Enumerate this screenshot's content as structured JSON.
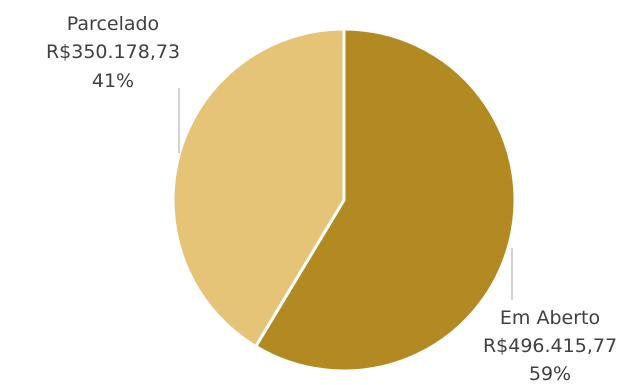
{
  "chart_data": {
    "type": "pie",
    "title": "",
    "slices": [
      {
        "label": "Em Aberto",
        "value": 496415.77,
        "value_text": "R$496.415,77",
        "percent_text": "59%",
        "color": "#B38A22"
      },
      {
        "label": "Parcelado",
        "value": 350178.73,
        "value_text": "R$350.178,73",
        "percent_text": "41%",
        "color": "#E5C477"
      }
    ],
    "start": "12 o'clock",
    "direction": "clockwise",
    "slice_border_color": "#ffffff",
    "leader_line_color": "#A6A6A6",
    "label_color": "#404040"
  }
}
